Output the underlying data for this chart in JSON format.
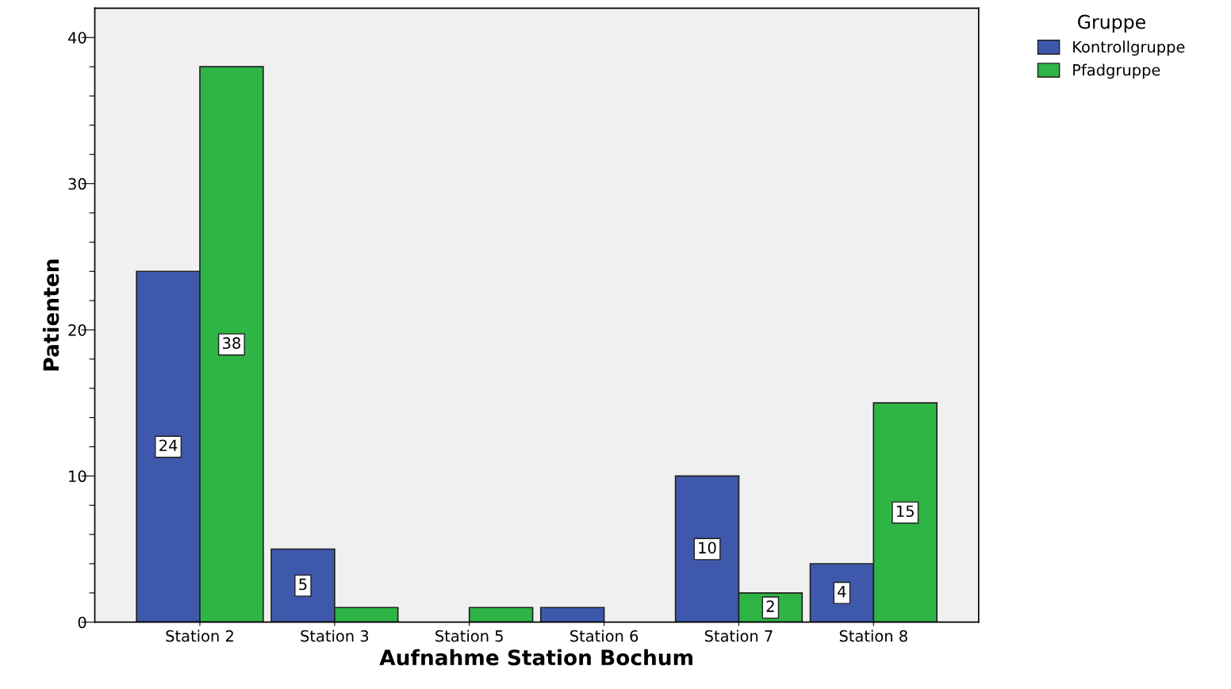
{
  "chart_data": {
    "type": "bar",
    "xlabel": "Aufnahme Station Bochum",
    "ylabel": "Patienten",
    "legend_title": "Gruppe",
    "categories": [
      "Station 2",
      "Station 3",
      "Station 5",
      "Station 6",
      "Station 7",
      "Station 8"
    ],
    "series": [
      {
        "name": "Kontrollgruppe",
        "color": "#3e58ac",
        "values": [
          24,
          5,
          null,
          1,
          10,
          4
        ],
        "value_labels": [
          "24",
          "5",
          null,
          null,
          "10",
          "4"
        ]
      },
      {
        "name": "Pfadgruppe",
        "color": "#2fb446",
        "values": [
          38,
          1,
          1,
          null,
          2,
          15
        ],
        "value_labels": [
          "38",
          null,
          null,
          null,
          "2",
          "15"
        ]
      }
    ],
    "ylim": [
      0,
      42
    ],
    "yticks": [
      0,
      {
        "value": 2,
        "label": null
      },
      {
        "value": 4,
        "label": null
      },
      {
        "value": 6,
        "label": null
      },
      {
        "value": 8,
        "label": null
      },
      10,
      {
        "value": 12,
        "label": null
      },
      {
        "value": 14,
        "label": null
      },
      {
        "value": 16,
        "label": null
      },
      {
        "value": 18,
        "label": null
      },
      20,
      {
        "value": 22,
        "label": null
      },
      {
        "value": 24,
        "label": null
      },
      {
        "value": 26,
        "label": null
      },
      {
        "value": 28,
        "label": null
      },
      30,
      {
        "value": 32,
        "label": null
      },
      {
        "value": 34,
        "label": null
      },
      {
        "value": 36,
        "label": null
      },
      {
        "value": 38,
        "label": null
      },
      40
    ],
    "grid": false,
    "legend": "top right"
  }
}
